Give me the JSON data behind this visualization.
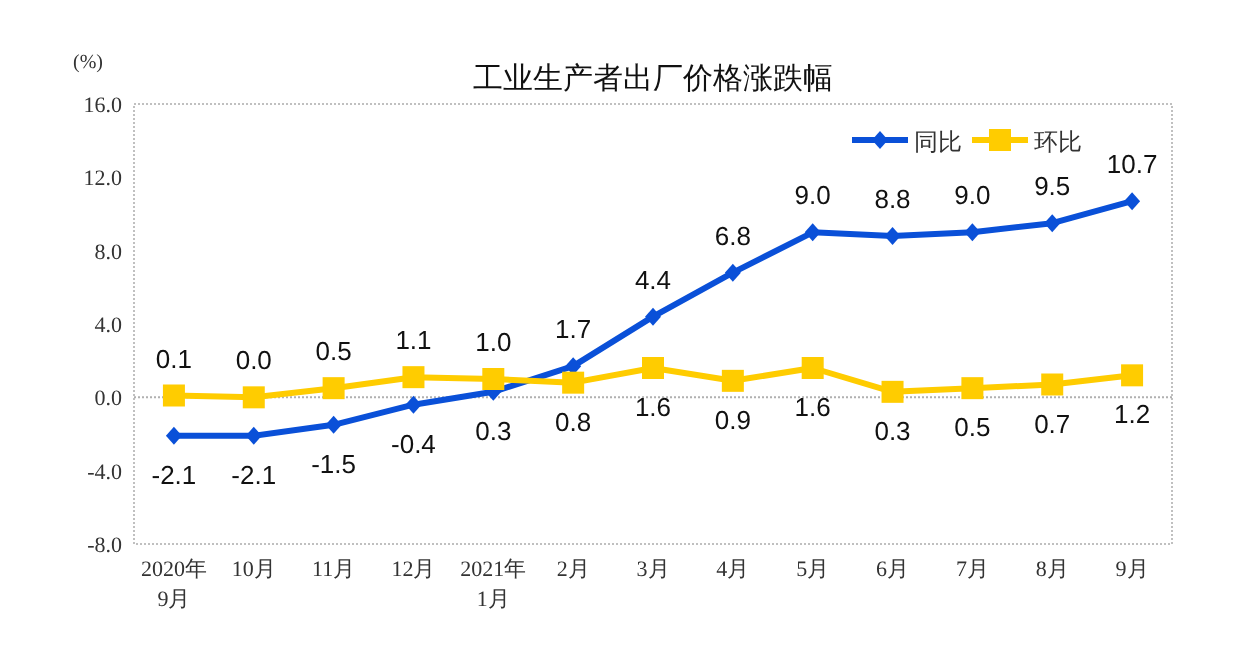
{
  "chart_data": {
    "type": "line",
    "title": "工业生产者出厂价格涨跌幅",
    "ylabel": "(%)",
    "categories": [
      "2020年\n9月",
      "10月",
      "11月",
      "12月",
      "2021年\n1月",
      "2月",
      "3月",
      "4月",
      "5月",
      "6月",
      "7月",
      "8月",
      "9月"
    ],
    "series": [
      {
        "name": "同比",
        "color": "#0a50d8",
        "marker": "diamond",
        "values": [
          -2.1,
          -2.1,
          -1.5,
          -0.4,
          0.3,
          1.7,
          4.4,
          6.8,
          9.0,
          8.8,
          9.0,
          9.5,
          10.7
        ],
        "value_labels": [
          "-2.1",
          "-2.1",
          "-1.5",
          "-0.4",
          "0.3",
          "1.7",
          "4.4",
          "6.8",
          "9.0",
          "8.8",
          "9.0",
          "9.5",
          "10.7"
        ]
      },
      {
        "name": "环比",
        "color": "#ffcc00",
        "marker": "square",
        "values": [
          0.1,
          0.0,
          0.5,
          1.1,
          1.0,
          0.8,
          1.6,
          0.9,
          1.6,
          0.3,
          0.5,
          0.7,
          1.2
        ],
        "value_labels": [
          "0.1",
          "0.0",
          "0.5",
          "1.1",
          "1.0",
          "0.8",
          "1.6",
          "0.9",
          "1.6",
          "0.3",
          "0.5",
          "0.7",
          "1.2"
        ]
      }
    ],
    "ylim": [
      -8,
      16
    ],
    "yticks": [
      {
        "value": -8,
        "label": "-8.0"
      },
      {
        "value": -4,
        "label": "-4.0"
      },
      {
        "value": 0,
        "label": "0.0"
      },
      {
        "value": 4,
        "label": "4.0"
      },
      {
        "value": 8,
        "label": "8.0"
      },
      {
        "value": 12,
        "label": "12.0"
      },
      {
        "value": 16,
        "label": "16.0"
      }
    ],
    "legend": "top right",
    "line_style": "solid"
  }
}
